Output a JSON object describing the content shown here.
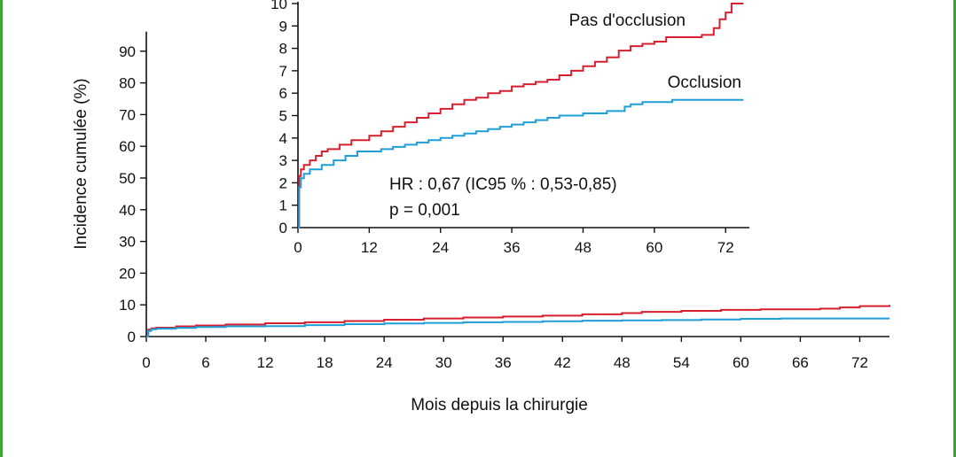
{
  "colors": {
    "frame": "#3aa535",
    "pas_occlusion": "#d6202f",
    "occlusion": "#1e9fd8",
    "axis": "#111111"
  },
  "chart_data": [
    {
      "type": "line",
      "xlabel": "Mois depuis la chirurgie",
      "ylabel": "Incidence cumulée (%)",
      "xlim": [
        0,
        75
      ],
      "ylim": [
        0,
        100
      ],
      "x_ticks": [
        0,
        6,
        12,
        18,
        24,
        30,
        36,
        42,
        48,
        54,
        60,
        66,
        72
      ],
      "y_ticks": [
        0,
        10,
        20,
        30,
        40,
        50,
        60,
        70,
        80,
        90
      ],
      "grid": false,
      "series": [
        {
          "name": "Pas d'occlusion",
          "color": "#d6202f",
          "x": [
            0,
            0.2,
            0.5,
            1,
            3,
            5,
            8,
            12,
            16,
            20,
            24,
            28,
            32,
            36,
            40,
            44,
            48,
            50,
            54,
            58,
            62,
            66,
            68,
            70,
            72,
            75
          ],
          "y": [
            0,
            2.2,
            2.6,
            2.8,
            3.2,
            3.5,
            3.8,
            4.2,
            4.5,
            4.9,
            5.3,
            5.7,
            6.0,
            6.3,
            6.6,
            7.0,
            7.4,
            7.8,
            8.1,
            8.4,
            8.6,
            8.6,
            8.8,
            9.2,
            9.6,
            10.0
          ]
        },
        {
          "name": "Occlusion",
          "color": "#1e9fd8",
          "x": [
            0,
            0.2,
            0.5,
            1,
            3,
            5,
            8,
            12,
            16,
            20,
            24,
            28,
            32,
            36,
            40,
            44,
            48,
            52,
            56,
            60,
            64,
            68,
            72,
            75
          ],
          "y": [
            0,
            1.8,
            2.3,
            2.5,
            2.7,
            3.0,
            3.2,
            3.3,
            3.6,
            3.9,
            4.1,
            4.3,
            4.5,
            4.6,
            4.8,
            5.0,
            5.1,
            5.2,
            5.4,
            5.6,
            5.7,
            5.7,
            5.7,
            5.7
          ]
        }
      ]
    },
    {
      "type": "line",
      "inset": true,
      "xlim": [
        0,
        76
      ],
      "ylim": [
        0,
        10
      ],
      "x_ticks": [
        0,
        12,
        24,
        36,
        48,
        60,
        72
      ],
      "y_ticks": [
        0,
        1,
        2,
        3,
        4,
        5,
        6,
        7,
        8,
        9,
        10
      ],
      "grid": false,
      "annotations": [
        "HR : 0,67 (IC95 % : 0,53-0,85)",
        "p = 0,001"
      ],
      "series": [
        {
          "name": "Pas d'occlusion",
          "color": "#d6202f",
          "x": [
            0,
            0.2,
            0.5,
            1,
            2,
            3,
            4,
            5,
            7,
            9,
            12,
            14,
            16,
            18,
            20,
            22,
            24,
            26,
            28,
            30,
            32,
            34,
            36,
            38,
            40,
            42,
            44,
            46,
            48,
            50,
            52,
            54,
            56,
            58,
            60,
            62,
            64,
            68,
            70,
            71,
            72,
            73,
            74,
            75
          ],
          "y": [
            0,
            2.3,
            2.6,
            2.8,
            3.0,
            3.2,
            3.4,
            3.5,
            3.7,
            3.9,
            4.1,
            4.3,
            4.5,
            4.7,
            4.9,
            5.1,
            5.3,
            5.5,
            5.7,
            5.8,
            6.0,
            6.1,
            6.3,
            6.4,
            6.5,
            6.6,
            6.8,
            7.0,
            7.2,
            7.4,
            7.6,
            7.9,
            8.1,
            8.2,
            8.3,
            8.5,
            8.5,
            8.6,
            8.9,
            9.3,
            9.6,
            10.0,
            10.0,
            10.0
          ]
        },
        {
          "name": "Occlusion",
          "color": "#1e9fd8",
          "x": [
            0,
            0.2,
            0.5,
            1,
            2,
            4,
            6,
            8,
            10,
            12,
            14,
            16,
            18,
            20,
            22,
            24,
            26,
            28,
            30,
            32,
            34,
            36,
            38,
            40,
            42,
            44,
            48,
            52,
            55,
            56,
            58,
            60,
            63,
            66,
            70,
            75
          ],
          "y": [
            0,
            1.8,
            2.2,
            2.4,
            2.6,
            2.8,
            3.0,
            3.2,
            3.4,
            3.4,
            3.5,
            3.6,
            3.7,
            3.8,
            3.9,
            4.0,
            4.1,
            4.2,
            4.3,
            4.4,
            4.5,
            4.6,
            4.7,
            4.8,
            4.9,
            5.0,
            5.1,
            5.2,
            5.4,
            5.5,
            5.6,
            5.6,
            5.7,
            5.7,
            5.7,
            5.7
          ]
        }
      ]
    }
  ]
}
